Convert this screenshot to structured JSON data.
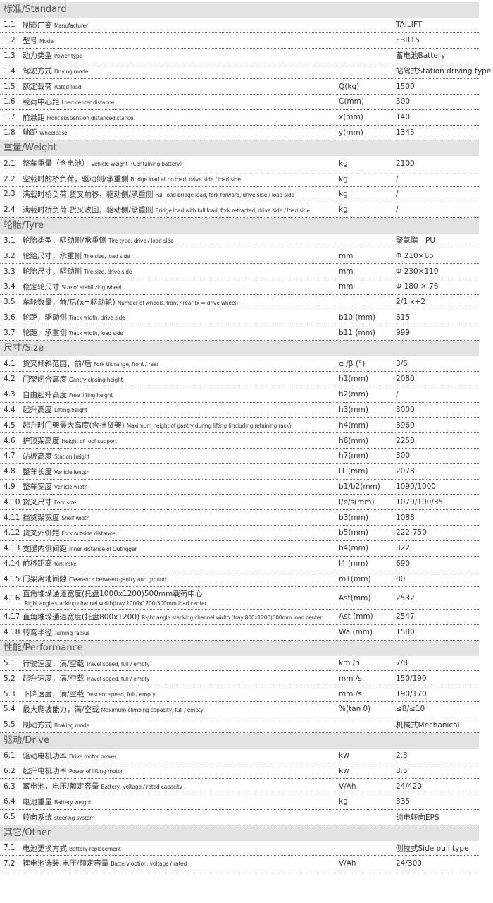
{
  "sections": [
    {
      "title": "标准/Standard",
      "rows": [
        {
          "no": "1.1",
          "zh": "制造厂商",
          "en": "Manufacturer",
          "value": "TAILIFT"
        },
        {
          "no": "1.2",
          "zh": "型号",
          "en": "Model",
          "value": "FBR15"
        },
        {
          "no": "1.3",
          "zh": "动力类型",
          "en": "Power type",
          "value": "蓄电池Battery"
        },
        {
          "no": "1.4",
          "zh": "驾驶方式",
          "en": "Driving mode",
          "value": "站驾式Station driving type"
        },
        {
          "no": "1.5",
          "zh": "额定载荷",
          "en": "Rated load",
          "unit": "Q(kg)",
          "value": "1500"
        },
        {
          "no": "1.6",
          "zh": "载荷中心距",
          "en": "Load center distance",
          "unit": "C(mm)",
          "value": "500"
        },
        {
          "no": "1.7",
          "zh": "前悬距",
          "en": "Front suspension distancedistance",
          "unit": "x(mm)",
          "value": "140"
        },
        {
          "no": "1.8",
          "zh": "轴距",
          "en": "Wheelbase",
          "unit": "y(mm)",
          "value": "1345"
        }
      ]
    },
    {
      "title": "重量/Weight",
      "rows": [
        {
          "no": "2.1",
          "zh": "整车重量（含电池）",
          "en": "Vehicle weight（Containing battery）",
          "unit": "kg",
          "value": "2100"
        },
        {
          "no": "2.2",
          "zh": "空载时的桥负荷，驱动侧/承重侧",
          "en": "Bridge load at no load, drive side / load side",
          "unit": "kg",
          "value": "/"
        },
        {
          "no": "2.3",
          "zh": "满载时桥负荷,货叉前移，驱动侧/承重侧",
          "en": "Full load bridge load, fork forward, drive side / load side",
          "unit": "kg",
          "value": "/"
        },
        {
          "no": "2.4",
          "zh": "满载时桥负荷,货叉收回，驱动侧/承重侧",
          "en": "Bridge load with full load, fork retracted, drive side / load side",
          "unit": "kg",
          "value": "/"
        }
      ]
    },
    {
      "title": "轮胎/Tyre",
      "rows": [
        {
          "no": "3.1",
          "zh": "轮胎类型，驱动侧/承重侧",
          "en": "Tire type, drive / load side",
          "value": "聚氨酯　PU"
        },
        {
          "no": "3.2",
          "zh": "轮胎尺寸，承重侧",
          "en": "Tire size, load side",
          "unit": "mm",
          "value": "Φ 210×85"
        },
        {
          "no": "3.3",
          "zh": "轮胎尺寸，驱动侧",
          "en": "Tire size, drive side",
          "unit": "mm",
          "value": "Φ 230×110"
        },
        {
          "no": "3.4",
          "zh": "稳定轮尺寸",
          "en": "Size of stabilizing wheel",
          "unit": "mm",
          "value": "Φ 180 × 76"
        },
        {
          "no": "3.5",
          "zh": "车轮数量，前/后(x=驱动轮)",
          "en": "Number of wheels, front / rear (x = drive wheel)",
          "value": "2/1 x+2"
        },
        {
          "no": "3.6",
          "zh": "轮距，驱动侧",
          "en": "Track width, drive side",
          "unit": "b10 (mm)",
          "value": "615"
        },
        {
          "no": "3.7",
          "zh": "轮距，承重侧",
          "en": "Track width, load side",
          "unit": "b11 (mm)",
          "value": "999"
        }
      ]
    },
    {
      "title": "尺寸/Size",
      "rows": [
        {
          "no": "4.1",
          "zh": "货叉倾斜范围，前/后",
          "en": "Fork tilt range, front / rear",
          "unit": "α /β (°)",
          "value": "3/5"
        },
        {
          "no": "4.2",
          "zh": "门架闭合高度",
          "en": "Gantry closing height",
          "unit": "h1(mm)",
          "value": "2080"
        },
        {
          "no": "4.3",
          "zh": "自由起升高度",
          "en": "Free lifting height",
          "unit": "h2(mm)",
          "value": "/"
        },
        {
          "no": "4.4",
          "zh": "起升高度",
          "en": "Lifting height",
          "unit": "h3(mm)",
          "value": "3000"
        },
        {
          "no": "4.5",
          "zh": "起升时门架最大高度(含挡货架)",
          "en": "Maximum height of gantry during lifting (including retaining rack)",
          "unit": "h4(mm)",
          "value": "3960"
        },
        {
          "no": "4.6",
          "zh": "护顶架高度",
          "en": "Height of roof support",
          "unit": "h6(mm)",
          "value": "2250"
        },
        {
          "no": "4.7",
          "zh": "站板高度",
          "en": "Station height",
          "unit": "h7(mm)",
          "value": "300"
        },
        {
          "no": "4.8",
          "zh": "整车长度",
          "en": "Vehicle length",
          "unit": "l1 (mm)",
          "value": "2078"
        },
        {
          "no": "4.9",
          "zh": "整车宽度",
          "en": "Vehicle width",
          "unit": "b1/b2(mm)",
          "value": "1090/1000"
        },
        {
          "no": "4.10",
          "zh": "货叉尺寸",
          "en": "Fork size",
          "unit": "l/e/s(mm)",
          "value": "1070/100/35"
        },
        {
          "no": "4.11",
          "zh": "挡货架宽度",
          "en": "Shelf width",
          "unit": "b3(mm)",
          "value": "1088"
        },
        {
          "no": "4.12",
          "zh": "货叉外侧距",
          "en": "Fork outside distance",
          "unit": "b5(mm)",
          "value": "222-750"
        },
        {
          "no": "4.13",
          "zh": "支腿内侧间距",
          "en": "Inner distance of Outrigger",
          "unit": "b4(mm)",
          "value": "822"
        },
        {
          "no": "4.14",
          "zh": "前移距离",
          "en": "fork rake",
          "unit": "l4 (mm)",
          "value": "690"
        },
        {
          "no": "4.15",
          "zh": "门架离地间隙",
          "en": "Clearance between gantry and ground",
          "unit": "m1(mm)",
          "value": "80"
        },
        {
          "no": "4.16",
          "zh": "直角堆垛通道宽度(托盘1000x1200)500mm载荷中心",
          "en": "Right angle stacking channel width(tray 1000x1200)500mm load center",
          "unit": "Ast(mm)",
          "value": "2532"
        },
        {
          "no": "4.17",
          "zh": "直角堆垛通道宽度(托盘800x1200)",
          "en": "Right angle stacking channel width (tray 800x1200)600mm load center",
          "unit": "Ast (mm)",
          "value": "2547"
        },
        {
          "no": "4.18",
          "zh": "转弯半径",
          "en": "Turning radius",
          "unit": "Wa (mm)",
          "value": "1580"
        }
      ]
    },
    {
      "title": "性能/Performance",
      "rows": [
        {
          "no": "5.1",
          "zh": "行驶速度，满/空载",
          "en": "Travel speed, full / empty",
          "unit": "km /h",
          "value": "7/8"
        },
        {
          "no": "5.2",
          "zh": "起升速度，满/空载",
          "en": "Travel speed, full / empty",
          "unit": "mm /s",
          "value": "150/190"
        },
        {
          "no": "5.3",
          "zh": "下降速度，满/空载",
          "en": "Descent speed, full / empty",
          "unit": "mm /s",
          "value": "190/170"
        },
        {
          "no": "5.4",
          "zh": "最大爬坡能力，满/空载",
          "en": "Maximum climbing capacity, full / empty",
          "unit": "%(tan θ)",
          "value": "≤8/≤10"
        },
        {
          "no": "5.5",
          "zh": "制动方式",
          "en": "Braking mode",
          "value": "机械式Mechanical"
        }
      ]
    },
    {
      "title": "驱动/Drive",
      "rows": [
        {
          "no": "6.1",
          "zh": "驱动电机功率",
          "en": "Drive motor power",
          "unit": "kw",
          "value": "2.3"
        },
        {
          "no": "6.2",
          "zh": "起升电机功率",
          "en": "Power of lifting motor",
          "unit": "kw",
          "value": "3.5"
        },
        {
          "no": "6.3",
          "zh": "蓄电池，电压/额定容量",
          "en": "Battery, voltage / rated capacity",
          "unit": "V/Ah",
          "value": "24/420"
        },
        {
          "no": "6.4",
          "zh": "电池重量",
          "en": "Battery weight",
          "unit": "kg",
          "value": "335"
        },
        {
          "no": "6.5",
          "zh": "转向系统",
          "en": "steering system",
          "value": "纯电转向EPS"
        }
      ]
    },
    {
      "title": "其它/Other",
      "rows": [
        {
          "no": "7.1",
          "zh": "电池更换方式",
          "en": "Battery replacement",
          "value": "侧拉式Side pull type"
        },
        {
          "no": "7.2",
          "zh": "锂电池选装,电压/额定容量",
          "en": "Battery option, voltage / rated",
          "unit": "V/Ah",
          "value": "24/300"
        }
      ]
    }
  ]
}
